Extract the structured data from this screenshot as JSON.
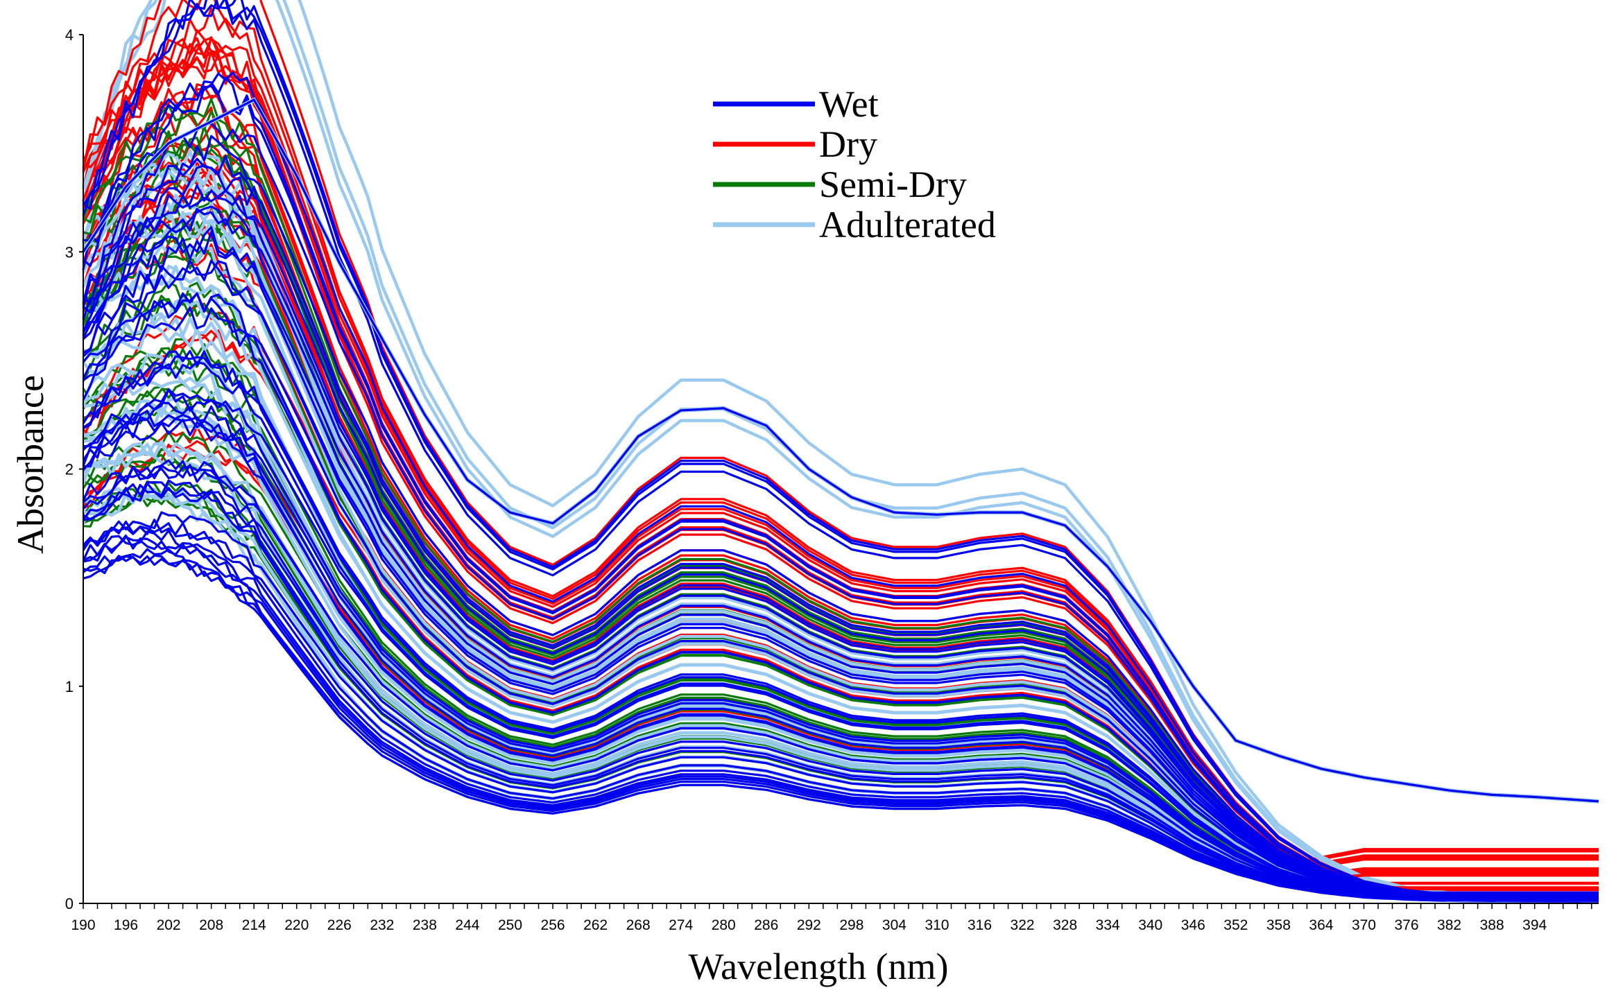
{
  "chart_data": {
    "type": "line",
    "title": "",
    "xlabel": "Wavelength (nm)",
    "ylabel": "Absorbance",
    "xlim": [
      190,
      403
    ],
    "ylim": [
      0,
      4
    ],
    "x_ticks": [
      190,
      196,
      202,
      208,
      214,
      220,
      226,
      232,
      238,
      244,
      250,
      256,
      262,
      268,
      274,
      280,
      286,
      292,
      298,
      304,
      310,
      316,
      322,
      328,
      334,
      340,
      346,
      352,
      358,
      364,
      370,
      376,
      382,
      388,
      394
    ],
    "y_ticks": [
      0,
      1,
      2,
      3,
      4
    ],
    "legend": {
      "placement": "top-center",
      "entries": [
        {
          "label": "Wet",
          "color": "#0000ee"
        },
        {
          "label": "Dry",
          "color": "#ff0000"
        },
        {
          "label": "Semi-Dry",
          "color": "#0a7a0a"
        },
        {
          "label": "Adulterated",
          "color": "#99c9ee"
        }
      ]
    },
    "profile_x": [
      190,
      196,
      202,
      208,
      214,
      220,
      226,
      232,
      238,
      244,
      250,
      256,
      262,
      268,
      274,
      280,
      286,
      292,
      298,
      304,
      310,
      316,
      322,
      328,
      334,
      340,
      346,
      352,
      358,
      364,
      370,
      376,
      382,
      388,
      394,
      403
    ],
    "series": [
      {
        "name": "Wet",
        "color": "#0000ee",
        "peak_200": [
          1.65,
          1.75,
          1.8,
          1.92,
          2.0,
          2.2,
          2.25,
          2.35,
          2.6,
          2.7,
          2.8,
          2.9,
          3.0,
          3.2,
          3.45
        ],
        "values_280": [
          0.55,
          0.6,
          0.65,
          0.72,
          0.78,
          0.85,
          0.95,
          1.05,
          1.15,
          1.3,
          1.4,
          1.5,
          1.65,
          1.85,
          1.98
        ]
      },
      {
        "name": "Dry",
        "color": "#ff0000",
        "peak_200": [
          2.0,
          2.38,
          3.0,
          3.1,
          3.2,
          3.3,
          3.4,
          3.5,
          3.55,
          3.6,
          3.65
        ],
        "values_280": [
          0.9,
          1.2,
          1.3,
          1.4,
          1.45,
          1.5,
          1.6,
          1.7,
          1.75,
          1.8,
          1.95
        ]
      },
      {
        "name": "Semi-Dry",
        "color": "#0a7a0a",
        "peak_200": [
          1.9,
          2.1,
          2.3,
          2.5,
          2.7,
          2.9,
          3.0,
          3.2,
          3.35
        ],
        "values_280": [
          0.7,
          0.8,
          0.9,
          1.0,
          1.15,
          1.25,
          1.35,
          1.45,
          1.55
        ]
      },
      {
        "name": "Adulterated",
        "color": "#99c9ee",
        "peak_200": [
          1.95,
          2.1,
          2.3,
          2.5,
          2.7,
          2.9,
          3.1,
          3.3,
          3.6
        ],
        "values_280": [
          0.65,
          0.75,
          0.85,
          0.95,
          1.05,
          1.15,
          1.25,
          1.35,
          2.28
        ]
      }
    ],
    "outlier_series": [
      {
        "name": "Wet",
        "color": "#0000ee",
        "values": [
          3.0,
          3.3,
          3.5,
          3.6,
          3.7,
          3.35,
          2.95,
          2.6,
          2.25,
          1.95,
          1.8,
          1.75,
          1.9,
          2.15,
          2.27,
          2.28,
          2.2,
          2.0,
          1.87,
          1.8,
          1.79,
          1.8,
          1.8,
          1.74,
          1.55,
          1.3,
          1.0,
          0.75,
          0.68,
          0.62,
          0.58,
          0.55,
          0.52,
          0.5,
          0.49,
          0.47
        ]
      }
    ]
  }
}
